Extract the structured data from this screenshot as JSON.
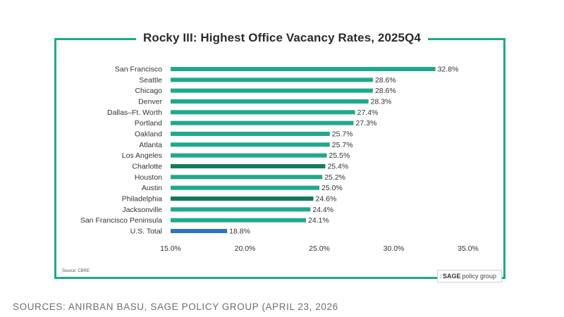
{
  "chart_data": {
    "type": "bar",
    "orientation": "horizontal",
    "title": "Rocky III: Highest Office Vacancy Rates, 2025Q4",
    "categories": [
      "San Francisco",
      "Seattle",
      "Chicago",
      "Denver",
      "Dallas–Ft. Worth",
      "Portland",
      "Oakland",
      "Atlanta",
      "Los Angeles",
      "Charlotte",
      "Houston",
      "Austin",
      "Philadelphia",
      "Jacksonville",
      "San Francisco Peninsula",
      "U.S. Total"
    ],
    "values": [
      32.8,
      28.6,
      28.6,
      28.3,
      27.4,
      27.3,
      25.7,
      25.7,
      25.5,
      25.4,
      25.2,
      25.0,
      24.6,
      24.4,
      24.1,
      18.8
    ],
    "value_labels": [
      "32.8%",
      "28.6%",
      "28.6%",
      "28.3%",
      "27.4%",
      "27.3%",
      "25.7%",
      "25.7%",
      "25.5%",
      "25.4%",
      "25.2%",
      "25.0%",
      "24.6%",
      "24.4%",
      "24.1%",
      "18.8%"
    ],
    "bar_colors": [
      "#1fa98b",
      "#1fa98b",
      "#1fa98b",
      "#1fa98b",
      "#1fa98b",
      "#1fa98b",
      "#1fa98b",
      "#1fa98b",
      "#1fa98b",
      "#157a5f",
      "#1fa98b",
      "#1fa98b",
      "#157a5f",
      "#1fa98b",
      "#1fa98b",
      "#2e75b6"
    ],
    "xlim": [
      15.0,
      35.0
    ],
    "xticks": [
      15.0,
      20.0,
      25.0,
      30.0,
      35.0
    ],
    "xtick_labels": [
      "15.0%",
      "20.0%",
      "25.0%",
      "30.0%",
      "35.0%"
    ],
    "grid": false,
    "legend": "none"
  },
  "source_note": "Source: CBRE",
  "logo": {
    "mark": ":",
    "brand": "SAGE",
    "rest": "policy group"
  },
  "caption": "SOURCES: ANIRBAN BASU, SAGE POLICY GROUP (APRIL 23, 2026",
  "colors": {
    "frame": "#1fa98b",
    "accent": "#157a5f",
    "us_total": "#2e75b6"
  }
}
